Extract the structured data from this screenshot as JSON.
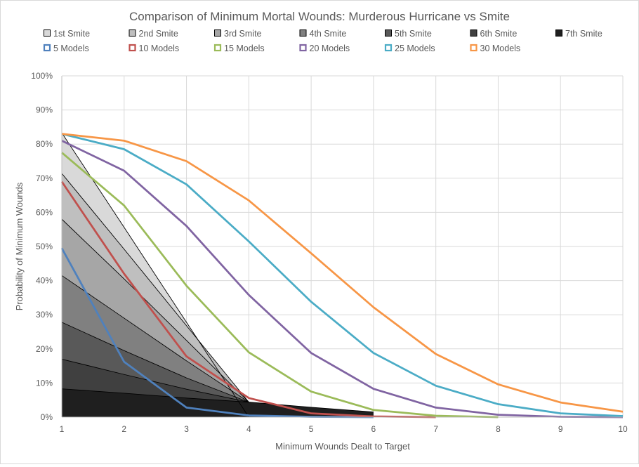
{
  "chart_data": {
    "type": "area",
    "title": "Comparison of Minimum Mortal Wounds: Murderous Hurricane vs Smite",
    "xlabel": "Minimum Wounds Dealt to Target",
    "ylabel": "Probability of Minimum Wounds",
    "x": [
      1,
      2,
      3,
      4,
      5,
      6,
      7,
      8,
      9,
      10
    ],
    "x_ticks": [
      "1",
      "2",
      "3",
      "4",
      "5",
      "6",
      "7",
      "8",
      "9",
      "10"
    ],
    "y_ticks": [
      "0%",
      "10%",
      "20%",
      "30%",
      "40%",
      "50%",
      "60%",
      "70%",
      "80%",
      "90%",
      "100%"
    ],
    "xlim": [
      1,
      10
    ],
    "ylim": [
      0,
      100
    ],
    "grid": true,
    "legend_position": "top",
    "area_series": [
      {
        "name": "1st Smite",
        "x": [
          1,
          2,
          3,
          4
        ],
        "values": [
          83.3,
          55.6,
          27.8,
          0
        ],
        "color": "#d9d9d9"
      },
      {
        "name": "2nd Smite",
        "x": [
          1,
          2,
          3,
          4
        ],
        "values": [
          71.4,
          49.2,
          26.8,
          4.4
        ],
        "color": "#bfbfbf"
      },
      {
        "name": "3rd Smite",
        "x": [
          1,
          2,
          3,
          4
        ],
        "values": [
          58.0,
          40.5,
          22.5,
          4.4
        ],
        "color": "#a6a6a6"
      },
      {
        "name": "4th Smite",
        "x": [
          1,
          2,
          3,
          4
        ],
        "values": [
          41.5,
          29.0,
          16.5,
          4.4
        ],
        "color": "#808080"
      },
      {
        "name": "5th Smite",
        "x": [
          1,
          2,
          3,
          4
        ],
        "values": [
          27.8,
          19.5,
          11.5,
          4.4
        ],
        "color": "#595959"
      },
      {
        "name": "6th Smite",
        "x": [
          1,
          2,
          3,
          4
        ],
        "values": [
          17.0,
          12.5,
          8.2,
          4.4
        ],
        "color": "#404040"
      },
      {
        "name": "7th Smite",
        "x": [
          1,
          2,
          3,
          4,
          5,
          6
        ],
        "values": [
          8.3,
          7.0,
          5.6,
          4.4,
          2.9,
          1.5
        ],
        "color": "#1f1f1f"
      }
    ],
    "line_series": [
      {
        "name": "5 Models",
        "x": [
          1,
          2,
          3,
          4,
          5,
          6
        ],
        "values": [
          49.5,
          16.2,
          2.8,
          0.5,
          0.1,
          0
        ],
        "color": "#4f81bd"
      },
      {
        "name": "10 Models",
        "x": [
          1,
          2,
          3,
          4,
          5,
          6,
          7
        ],
        "values": [
          69.0,
          42.0,
          17.8,
          5.6,
          1.1,
          0.2,
          0
        ],
        "color": "#c0504d"
      },
      {
        "name": "15 Models",
        "x": [
          1,
          2,
          3,
          4,
          5,
          6,
          7,
          8
        ],
        "values": [
          77.5,
          62.0,
          38.5,
          19.0,
          7.5,
          2.1,
          0.4,
          0
        ],
        "color": "#9bbb59"
      },
      {
        "name": "20 Models",
        "x": [
          1,
          2,
          3,
          4,
          5,
          6,
          7,
          8,
          9,
          10
        ],
        "values": [
          81.0,
          72.2,
          56.0,
          35.8,
          18.8,
          8.3,
          2.8,
          0.7,
          0.1,
          0
        ],
        "color": "#8064a2"
      },
      {
        "name": "25 Models",
        "x": [
          1,
          2,
          3,
          4,
          5,
          6,
          7,
          8,
          9,
          10
        ],
        "values": [
          83.0,
          78.5,
          68.2,
          51.5,
          33.8,
          18.8,
          9.2,
          3.8,
          1.1,
          0.3
        ],
        "color": "#4bacc6"
      },
      {
        "name": "30 Models",
        "x": [
          1,
          2,
          3,
          4,
          5,
          6,
          7,
          8,
          9,
          10
        ],
        "values": [
          83.0,
          81.0,
          75.0,
          63.5,
          48.0,
          32.2,
          18.5,
          9.6,
          4.3,
          1.6
        ],
        "color": "#f79646"
      }
    ],
    "legend_row1": [
      "1st Smite",
      "2nd Smite",
      "3rd Smite",
      "4th Smite",
      "5th Smite",
      "6th Smite",
      "7th Smite"
    ],
    "legend_row2": [
      "5 Models",
      "10 Models",
      "15 Models",
      "20 Models",
      "25 Models",
      "30 Models"
    ],
    "gridline_color": "#d9d9d9"
  }
}
